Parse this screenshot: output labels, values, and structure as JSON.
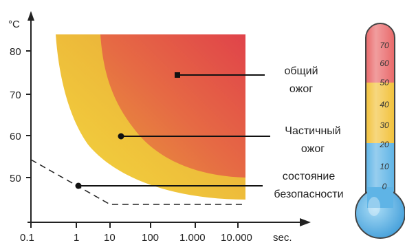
{
  "axes": {
    "y_unit": "°C",
    "y_ticks": [
      "80",
      "70",
      "60",
      "50"
    ],
    "x_unit": "sec.",
    "x_ticks": [
      "0.1",
      "1",
      "10",
      "100",
      "1.000",
      "10.000"
    ],
    "y_scale": "linear",
    "x_scale": "log"
  },
  "zones": [
    {
      "label_line1": "общий",
      "label_line2": "ожог",
      "color": "#e24e4a"
    },
    {
      "label_line1": "Частичный",
      "label_line2": "ожог",
      "color": "#e8a43a"
    },
    {
      "label_line1": "состояние",
      "label_line2": "безопасности",
      "color": "#ffffff"
    }
  ],
  "thermometer": {
    "scale": [
      "70",
      "60",
      "50",
      "40",
      "30",
      "20",
      "10",
      "0"
    ],
    "bands": [
      {
        "name": "hot",
        "color": "#e9696a"
      },
      {
        "name": "warm",
        "color": "#f2c23b"
      },
      {
        "name": "cool",
        "color": "#5fb4e6"
      }
    ]
  }
}
